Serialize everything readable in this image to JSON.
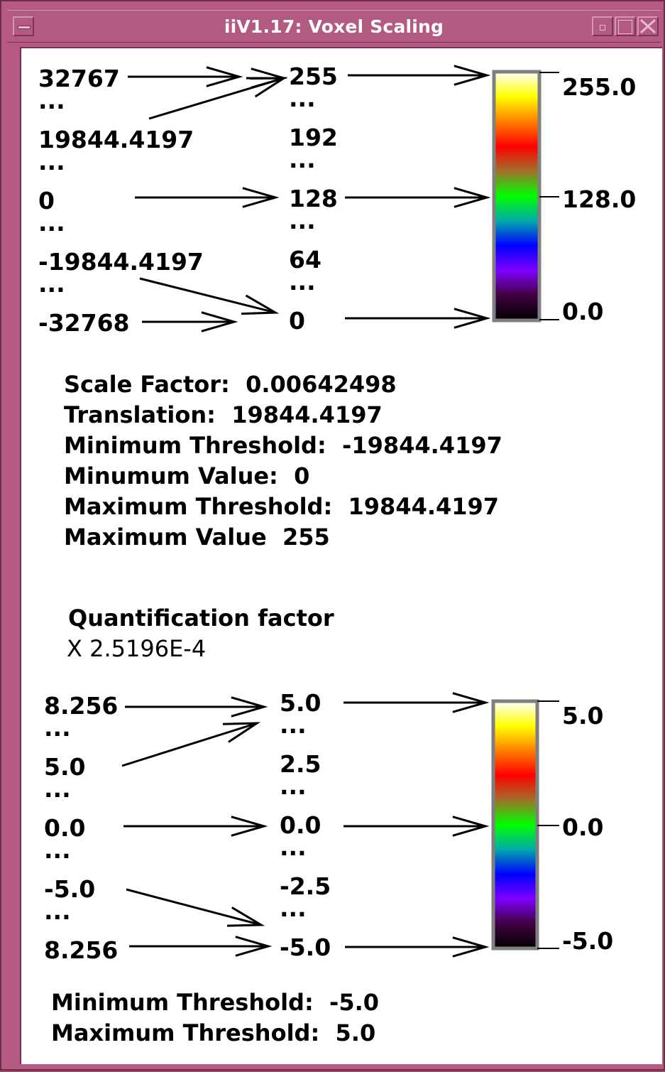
{
  "window": {
    "title": "iiV1.17: Voxel Scaling"
  },
  "top_mapping": {
    "input_labels": [
      "32767",
      "...",
      "19844.4197",
      "...",
      "0",
      "...",
      "-19844.4197",
      "...",
      "-32768"
    ],
    "output_labels": [
      "255",
      "...",
      "192",
      "...",
      "128",
      "...",
      "64",
      "...",
      "0"
    ],
    "colorbar_ticks": [
      "255.0",
      "128.0",
      "0.0"
    ]
  },
  "scaling_info": [
    {
      "label": "Scale Factor:",
      "value": "0.00642498"
    },
    {
      "label": "Translation:",
      "value": "19844.4197"
    },
    {
      "label": "Minimum Threshold:",
      "value": "-19844.4197"
    },
    {
      "label": "Minumum Value:",
      "value": "0"
    },
    {
      "label": "Maximum Threshold:",
      "value": "19844.4197"
    },
    {
      "label": "Maximum Value",
      "value": "255"
    }
  ],
  "quantification": {
    "title": "Quantification factor",
    "value": "X 2.5196E-4"
  },
  "bottom_mapping": {
    "input_labels": [
      "8.256",
      "...",
      "5.0",
      "...",
      "0.0",
      "...",
      "-5.0",
      "...",
      "8.256"
    ],
    "output_labels": [
      "5.0",
      "...",
      "2.5",
      "...",
      "0.0",
      "...",
      "-2.5",
      "...",
      "-5.0"
    ],
    "colorbar_ticks": [
      "5.0",
      "0.0",
      "-5.0"
    ]
  },
  "threshold_info": [
    {
      "label": "Minimum Threshold:",
      "value": "-5.0"
    },
    {
      "label": "Maximum Threshold:",
      "value": "5.0"
    }
  ],
  "colormap": {
    "stops": [
      "#ffffff",
      "#ffff00",
      "#ff7f00",
      "#ff0000",
      "#a0702a",
      "#00ff00",
      "#00aaaa",
      "#0000ff",
      "#7f00ff",
      "#400040",
      "#000000"
    ]
  }
}
